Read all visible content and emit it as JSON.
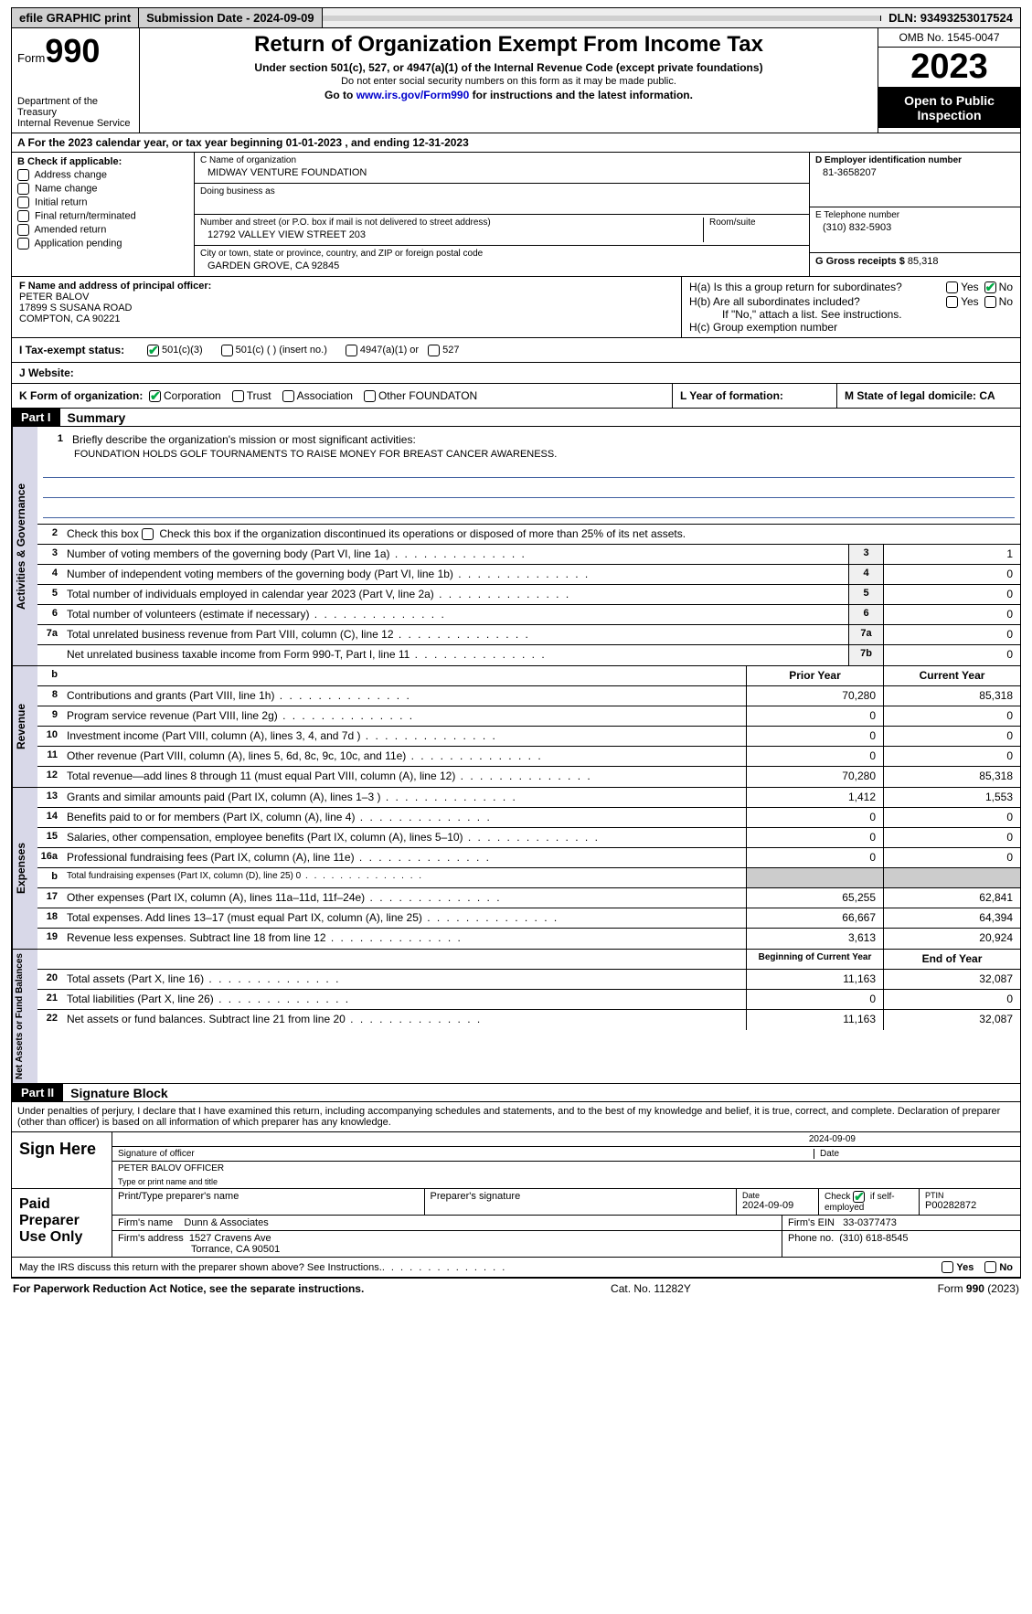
{
  "topbar": {
    "efile": "efile GRAPHIC print",
    "submission": "Submission Date - 2024-09-09",
    "dln": "DLN: 93493253017524"
  },
  "header": {
    "form_word": "Form",
    "form_num": "990",
    "dept": "Department of the Treasury",
    "irs": "Internal Revenue Service",
    "title": "Return of Organization Exempt From Income Tax",
    "subtitle": "Under section 501(c), 527, or 4947(a)(1) of the Internal Revenue Code (except private foundations)",
    "note": "Do not enter social security numbers on this form as it may be made public.",
    "goto_pre": "Go to ",
    "goto_link": "www.irs.gov/Form990",
    "goto_post": " for instructions and the latest information.",
    "omb": "OMB No. 1545-0047",
    "year": "2023",
    "inspect": "Open to Public Inspection"
  },
  "row_a": "A For the 2023 calendar year, or tax year beginning 01-01-2023    , and ending 12-31-2023",
  "col_b": {
    "title": "B Check if applicable:",
    "items": [
      "Address change",
      "Name change",
      "Initial return",
      "Final return/terminated",
      "Amended return",
      "Application pending"
    ]
  },
  "col_c": {
    "name_label": "C Name of organization",
    "name": "MIDWAY VENTURE FOUNDATION",
    "dba_label": "Doing business as",
    "addr_label": "Number and street (or P.O. box if mail is not delivered to street address)",
    "room_label": "Room/suite",
    "addr": "12792 VALLEY VIEW STREET 203",
    "city_label": "City or town, state or province, country, and ZIP or foreign postal code",
    "city": "GARDEN GROVE, CA   92845"
  },
  "col_d": {
    "ein_label": "D Employer identification number",
    "ein": "81-3658207",
    "phone_label": "E Telephone number",
    "phone": "(310) 832-5903",
    "gross_label": "G Gross receipts $ ",
    "gross": "85,318"
  },
  "col_f": {
    "label": "F  Name and address of principal officer:",
    "name": "PETER BALOV",
    "addr1": "17899 S SUSANA ROAD",
    "addr2": "COMPTON, CA   90221"
  },
  "col_h": {
    "ha": "H(a)  Is this a group return for subordinates?",
    "hb": "H(b)  Are all subordinates included?",
    "hb_note": "If \"No,\" attach a list. See instructions.",
    "hc": "H(c)  Group exemption number",
    "yes": "Yes",
    "no": "No"
  },
  "row_i": {
    "label": "I   Tax-exempt status:",
    "opts": [
      "501(c)(3)",
      "501(c) (  ) (insert no.)",
      "4947(a)(1) or",
      "527"
    ]
  },
  "row_j": "J   Website:",
  "row_k": {
    "label": "K Form of organization:",
    "opts": [
      "Corporation",
      "Trust",
      "Association",
      "Other"
    ],
    "other_val": "FOUNDATON",
    "l": "L Year of formation:",
    "m": "M State of legal domicile: CA"
  },
  "part1": {
    "num": "Part I",
    "title": "Summary"
  },
  "governance": {
    "label": "Activities & Governance",
    "l1_text": "Briefly describe the organization's mission or most significant activities:",
    "l1_val": "FOUNDATION HOLDS GOLF TOURNAMENTS TO RAISE MONEY FOR BREAST CANCER AWARENESS.",
    "l2": "Check this box        if the organization discontinued its operations or disposed of more than 25% of its net assets.",
    "lines": [
      {
        "n": "3",
        "t": "Number of voting members of the governing body (Part VI, line 1a)",
        "box": "3",
        "v": "1"
      },
      {
        "n": "4",
        "t": "Number of independent voting members of the governing body (Part VI, line 1b)",
        "box": "4",
        "v": "0"
      },
      {
        "n": "5",
        "t": "Total number of individuals employed in calendar year 2023 (Part V, line 2a)",
        "box": "5",
        "v": "0"
      },
      {
        "n": "6",
        "t": "Total number of volunteers (estimate if necessary)",
        "box": "6",
        "v": "0"
      },
      {
        "n": "7a",
        "t": "Total unrelated business revenue from Part VIII, column (C), line 12",
        "box": "7a",
        "v": "0"
      },
      {
        "n": "",
        "t": "Net unrelated business taxable income from Form 990-T, Part I, line 11",
        "box": "7b",
        "v": "0"
      }
    ]
  },
  "revenue": {
    "label": "Revenue",
    "hdr_prior": "Prior Year",
    "hdr_current": "Current Year",
    "lines": [
      {
        "n": "8",
        "t": "Contributions and grants (Part VIII, line 1h)",
        "p": "70,280",
        "c": "85,318"
      },
      {
        "n": "9",
        "t": "Program service revenue (Part VIII, line 2g)",
        "p": "0",
        "c": "0"
      },
      {
        "n": "10",
        "t": "Investment income (Part VIII, column (A), lines 3, 4, and 7d )",
        "p": "0",
        "c": "0"
      },
      {
        "n": "11",
        "t": "Other revenue (Part VIII, column (A), lines 5, 6d, 8c, 9c, 10c, and 11e)",
        "p": "0",
        "c": "0"
      },
      {
        "n": "12",
        "t": "Total revenue—add lines 8 through 11 (must equal Part VIII, column (A), line 12)",
        "p": "70,280",
        "c": "85,318"
      }
    ]
  },
  "expenses": {
    "label": "Expenses",
    "lines": [
      {
        "n": "13",
        "t": "Grants and similar amounts paid (Part IX, column (A), lines 1–3 )",
        "p": "1,412",
        "c": "1,553"
      },
      {
        "n": "14",
        "t": "Benefits paid to or for members (Part IX, column (A), line 4)",
        "p": "0",
        "c": "0"
      },
      {
        "n": "15",
        "t": "Salaries, other compensation, employee benefits (Part IX, column (A), lines 5–10)",
        "p": "0",
        "c": "0"
      },
      {
        "n": "16a",
        "t": "Professional fundraising fees (Part IX, column (A), line 11e)",
        "p": "0",
        "c": "0"
      },
      {
        "n": "b",
        "t": "Total fundraising expenses (Part IX, column (D), line 25) 0",
        "p": "",
        "c": "",
        "shade": true,
        "small": true
      },
      {
        "n": "17",
        "t": "Other expenses (Part IX, column (A), lines 11a–11d, 11f–24e)",
        "p": "65,255",
        "c": "62,841"
      },
      {
        "n": "18",
        "t": "Total expenses. Add lines 13–17 (must equal Part IX, column (A), line 25)",
        "p": "66,667",
        "c": "64,394"
      },
      {
        "n": "19",
        "t": "Revenue less expenses. Subtract line 18 from line 12",
        "p": "3,613",
        "c": "20,924"
      }
    ]
  },
  "netassets": {
    "label": "Net Assets or Fund Balances",
    "hdr_begin": "Beginning of Current Year",
    "hdr_end": "End of Year",
    "lines": [
      {
        "n": "20",
        "t": "Total assets (Part X, line 16)",
        "p": "11,163",
        "c": "32,087"
      },
      {
        "n": "21",
        "t": "Total liabilities (Part X, line 26)",
        "p": "0",
        "c": "0"
      },
      {
        "n": "22",
        "t": "Net assets or fund balances. Subtract line 21 from line 20",
        "p": "11,163",
        "c": "32,087"
      }
    ]
  },
  "part2": {
    "num": "Part II",
    "title": "Signature Block"
  },
  "disclaimer": "Under penalties of perjury, I declare that I have examined this return, including accompanying schedules and statements, and to the best of my knowledge and belief, it is true, correct, and complete. Declaration of preparer (other than officer) is based on all information of which preparer has any knowledge.",
  "sign": {
    "label": "Sign Here",
    "sig_label": "Signature of officer",
    "date_label": "Date",
    "date": "2024-09-09",
    "name": "PETER BALOV OFFICER",
    "name_label": "Type or print name and title"
  },
  "preparer": {
    "label": "Paid Preparer Use Only",
    "print_label": "Print/Type preparer's name",
    "sig_label": "Preparer's signature",
    "date_label": "Date",
    "date": "2024-09-09",
    "check_label": "Check         if self-employed",
    "ptin_label": "PTIN",
    "ptin": "P00282872",
    "firm_name_label": "Firm's name",
    "firm_name": "Dunn & Associates",
    "firm_ein_label": "Firm's EIN",
    "firm_ein": "33-0377473",
    "firm_addr_label": "Firm's address",
    "firm_addr1": "1527 Cravens Ave",
    "firm_addr2": "Torrance, CA   90501",
    "phone_label": "Phone no.",
    "phone": "(310) 618-8545"
  },
  "discuss": "May the IRS discuss this return with the preparer shown above? See Instructions.",
  "footer": {
    "left": "For Paperwork Reduction Act Notice, see the separate instructions.",
    "mid": "Cat. No. 11282Y",
    "right_pre": "Form ",
    "right_form": "990",
    "right_post": " (2023)"
  }
}
